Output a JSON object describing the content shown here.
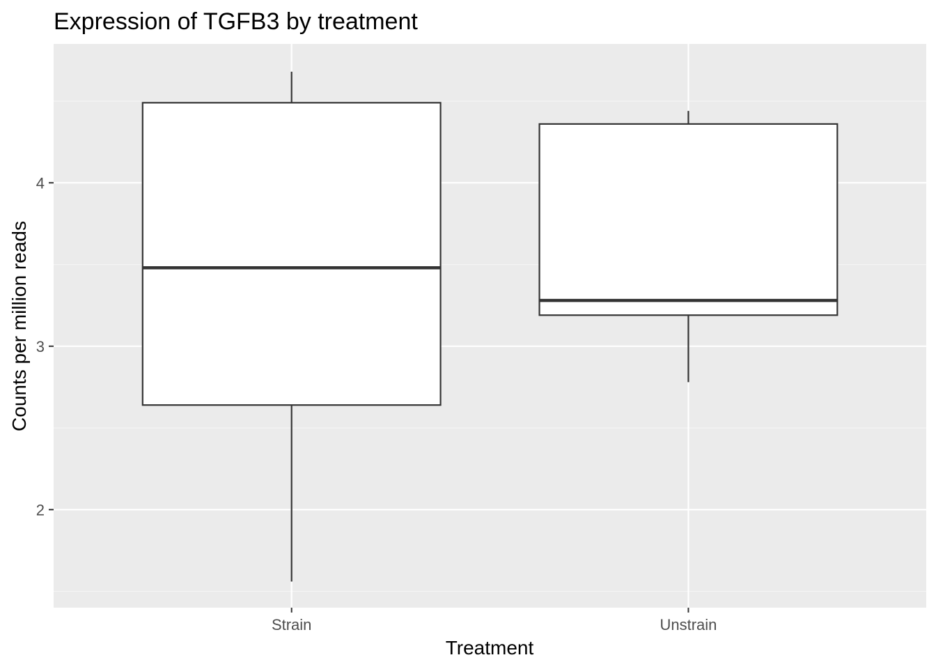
{
  "chart_data": {
    "type": "boxplot",
    "title": "Expression of TGFB3 by treatment",
    "xlabel": "Treatment",
    "ylabel": "Counts per million reads",
    "categories": [
      "Strain",
      "Unstrain"
    ],
    "boxes": [
      {
        "category": "Strain",
        "whisker_low": 1.56,
        "q1": 2.64,
        "median": 3.48,
        "q3": 4.49,
        "whisker_high": 4.68
      },
      {
        "category": "Unstrain",
        "whisker_low": 2.78,
        "q1": 3.19,
        "median": 3.28,
        "q3": 4.36,
        "whisker_high": 4.44
      }
    ],
    "ylim": [
      1.4,
      4.85
    ],
    "yticks": [
      2,
      3,
      4
    ],
    "ytick_labels": [
      "2",
      "3",
      "4"
    ],
    "grid": true,
    "colors": {
      "panel_background": "#ebebeb",
      "grid_major": "#ffffff",
      "grid_minor": "#f5f5f5",
      "box_fill": "#ffffff",
      "box_stroke": "#333333",
      "tick_label": "#4d4d4d",
      "tick_mark": "#333333"
    }
  }
}
